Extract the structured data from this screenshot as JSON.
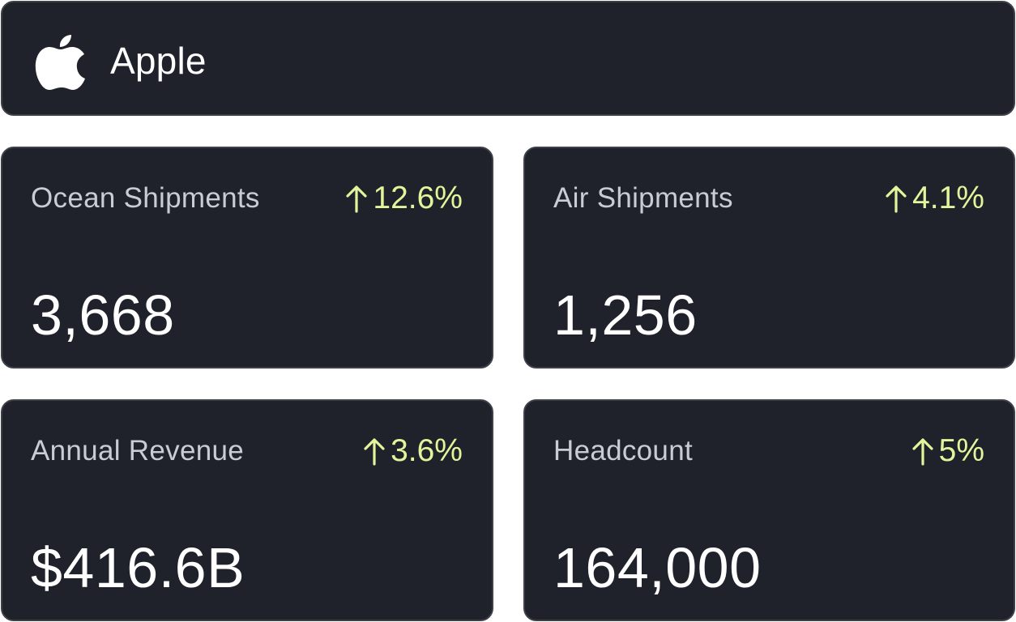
{
  "company": {
    "name": "Apple",
    "logo_icon": "apple-logo-icon"
  },
  "colors": {
    "card_background": "#20222b",
    "card_border": "#3d4049",
    "label_text": "#c9ccd3",
    "change_positive": "#e3f59b",
    "value_text": "#ffffff"
  },
  "stats": [
    {
      "label": "Ocean Shipments",
      "change": "12.6%",
      "direction_icon": "arrow-up-icon",
      "value": "3,668"
    },
    {
      "label": "Air Shipments",
      "change": "4.1%",
      "direction_icon": "arrow-up-icon",
      "value": "1,256"
    },
    {
      "label": "Annual Revenue",
      "change": "3.6%",
      "direction_icon": "arrow-up-icon",
      "value": "$416.6B"
    },
    {
      "label": "Headcount",
      "change": "5%",
      "direction_icon": "arrow-up-icon",
      "value": "164,000"
    }
  ]
}
